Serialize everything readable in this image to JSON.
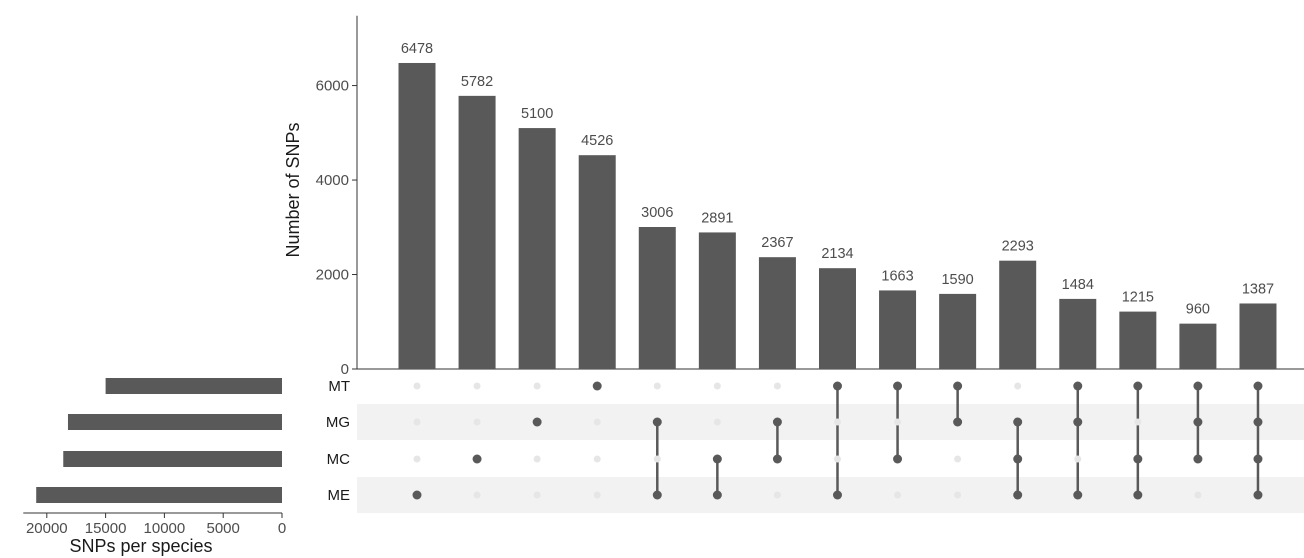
{
  "chart_data": {
    "type": "upset",
    "sets": [
      "MT",
      "MG",
      "MC",
      "ME"
    ],
    "intersections": [
      {
        "sets": [
          "ME"
        ],
        "value": 6478
      },
      {
        "sets": [
          "MC"
        ],
        "value": 5782
      },
      {
        "sets": [
          "MG"
        ],
        "value": 5100
      },
      {
        "sets": [
          "MT"
        ],
        "value": 4526
      },
      {
        "sets": [
          "MG",
          "ME"
        ],
        "value": 3006
      },
      {
        "sets": [
          "MC",
          "ME"
        ],
        "value": 2891
      },
      {
        "sets": [
          "MG",
          "MC"
        ],
        "value": 2367
      },
      {
        "sets": [
          "MT",
          "ME"
        ],
        "value": 2134
      },
      {
        "sets": [
          "MT",
          "MC"
        ],
        "value": 1663
      },
      {
        "sets": [
          "MT",
          "MG"
        ],
        "value": 1590
      },
      {
        "sets": [
          "MG",
          "MC",
          "ME"
        ],
        "value": 2293
      },
      {
        "sets": [
          "MT",
          "MG",
          "ME"
        ],
        "value": 1484
      },
      {
        "sets": [
          "MT",
          "MC",
          "ME"
        ],
        "value": 1215
      },
      {
        "sets": [
          "MT",
          "MG",
          "MC"
        ],
        "value": 960
      },
      {
        "sets": [
          "MT",
          "MG",
          "MC",
          "ME"
        ],
        "value": 1387
      }
    ],
    "set_sizes": [
      {
        "name": "MT",
        "value": 15000
      },
      {
        "name": "MG",
        "value": 18200
      },
      {
        "name": "MC",
        "value": 18600
      },
      {
        "name": "ME",
        "value": 20900
      }
    ],
    "intersection_axis": {
      "label": "Number of SNPs",
      "ylim": [
        0,
        7500
      ],
      "ticks": [
        0,
        2000,
        4000,
        6000
      ]
    },
    "set_size_axis": {
      "label": "SNPs per species",
      "xlim": [
        22000,
        0
      ],
      "ticks": [
        20000,
        15000,
        10000,
        5000,
        0
      ]
    },
    "colors": {
      "bar": "#595959",
      "dot_active": "#595959",
      "dot_inactive": "#e6e6e6",
      "stripe": "#f2f2f2",
      "axis": "#333333"
    }
  }
}
